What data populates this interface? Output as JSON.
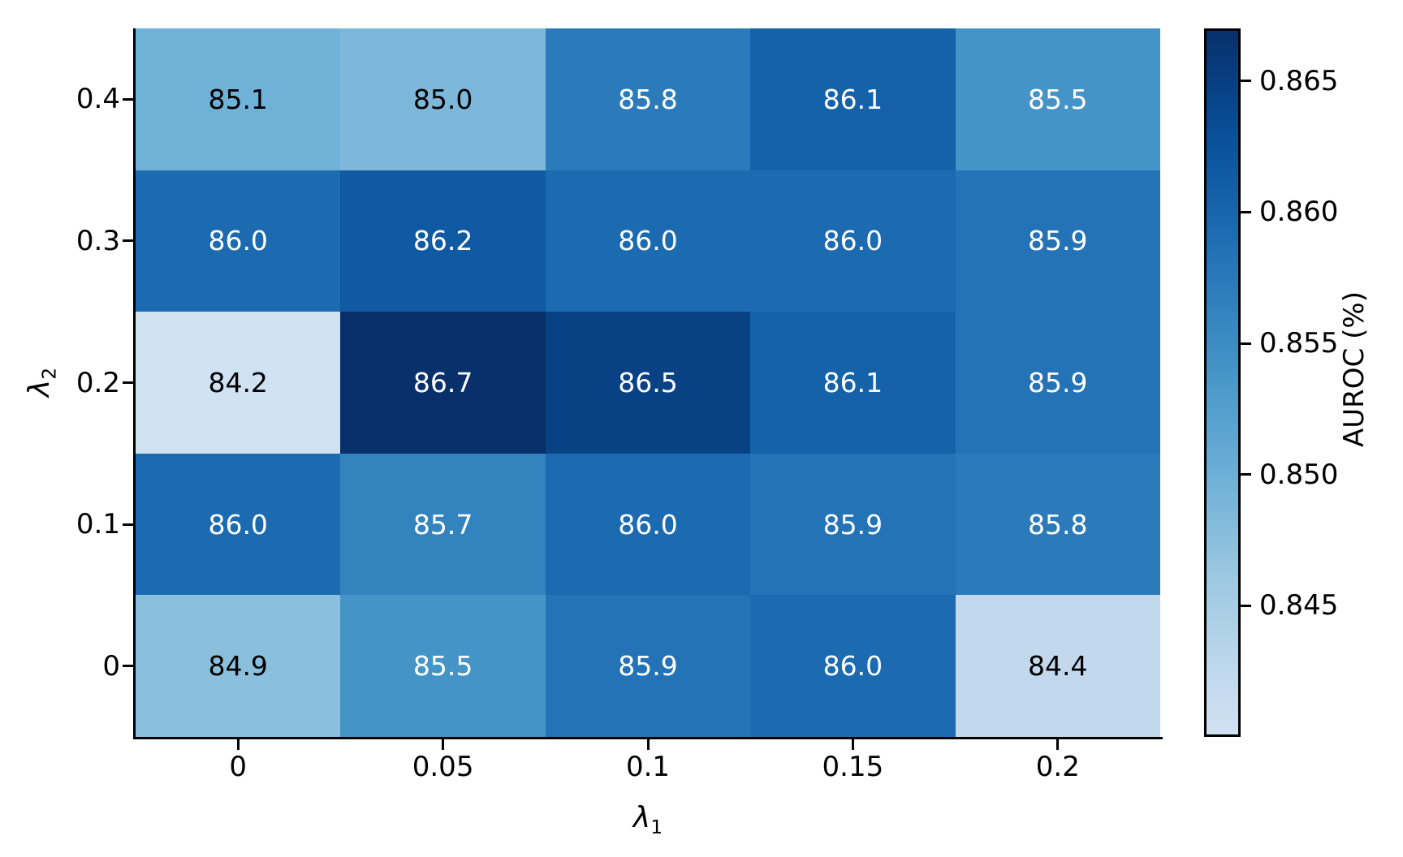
{
  "chart_data": {
    "type": "heatmap",
    "xlabel": {
      "base": "λ",
      "sub": "1"
    },
    "ylabel": {
      "base": "λ",
      "sub": "2"
    },
    "x_categories": [
      "0",
      "0.05",
      "0.1",
      "0.15",
      "0.2"
    ],
    "y_categories": [
      "0.4",
      "0.3",
      "0.2",
      "0.1",
      "0"
    ],
    "values": [
      [
        85.1,
        85.0,
        85.8,
        86.1,
        85.5
      ],
      [
        86.0,
        86.2,
        86.0,
        86.0,
        85.9
      ],
      [
        84.2,
        86.7,
        86.5,
        86.1,
        85.9
      ],
      [
        86.0,
        85.7,
        86.0,
        85.9,
        85.8
      ],
      [
        84.9,
        85.5,
        85.9,
        86.0,
        84.4
      ]
    ],
    "cell_labels": [
      [
        "85.1",
        "85.0",
        "85.8",
        "86.1",
        "85.5"
      ],
      [
        "86.0",
        "86.2",
        "86.0",
        "86.0",
        "85.9"
      ],
      [
        "84.2",
        "86.7",
        "86.5",
        "86.1",
        "85.9"
      ],
      [
        "86.0",
        "85.7",
        "86.0",
        "85.9",
        "85.8"
      ],
      [
        "84.9",
        "85.5",
        "85.9",
        "86.0",
        "84.4"
      ]
    ],
    "annotation": {
      "threshold_pct": 85.45,
      "text_on_light": "#000000",
      "text_on_dark": "#ffffff"
    },
    "colormap": {
      "name": "Blues (truncated)",
      "anchors": [
        "#f7fbff",
        "#deebf7",
        "#c6dbef",
        "#9ecae1",
        "#6baed6",
        "#4292c6",
        "#2171b5",
        "#08519c",
        "#08306b"
      ],
      "cmap_start": 0.2,
      "cmap_end": 1.0,
      "value_at_start_pct": 84.2,
      "value_at_end_pct": 86.7
    },
    "colorbar": {
      "label": "AUROC (%)",
      "tick_labels": [
        "0.865",
        "0.860",
        "0.855",
        "0.850",
        "0.845"
      ],
      "tick_values": [
        0.865,
        0.86,
        0.855,
        0.85,
        0.845
      ],
      "vmin": 0.84,
      "vmax": 0.867
    },
    "grid": false,
    "title": ""
  }
}
